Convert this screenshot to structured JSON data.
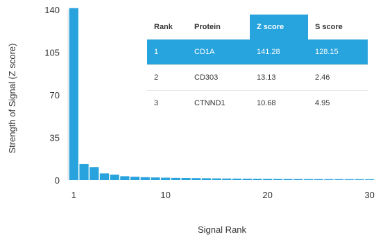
{
  "chart_data": {
    "type": "bar",
    "title": "",
    "xlabel": "Signal Rank",
    "ylabel": "Strength of Signal (Z score)",
    "ylim": [
      0,
      140
    ],
    "yticks": [
      "0",
      "35",
      "70",
      "105",
      "140"
    ],
    "xticks": [
      "1",
      "10",
      "20",
      "30"
    ],
    "xlim": [
      1,
      30
    ],
    "grid": false,
    "bar_color": "#29a3dd",
    "x": [
      1,
      2,
      3,
      4,
      5,
      6,
      7,
      8,
      9,
      10,
      11,
      12,
      13,
      14,
      15,
      16,
      17,
      18,
      19,
      20,
      21,
      22,
      23,
      24,
      25,
      26,
      27,
      28,
      29,
      30
    ],
    "values": [
      141.28,
      13.13,
      10.68,
      5.5,
      4.5,
      3.2,
      2.8,
      2.4,
      2.2,
      2.0,
      1.8,
      1.7,
      1.6,
      1.5,
      1.4,
      1.3,
      1.25,
      1.2,
      1.15,
      1.1,
      1.05,
      1.0,
      0.95,
      0.9,
      0.9,
      0.85,
      0.85,
      0.8,
      0.8,
      0.75
    ]
  },
  "table": {
    "headers": [
      "Rank",
      "Protein",
      "Z score",
      "S score"
    ],
    "highlight_color": "#27a3dd",
    "rows": [
      [
        "1",
        "CD1A",
        "141.28",
        "128.15"
      ],
      [
        "2",
        "CD303",
        "13.13",
        "2.46"
      ],
      [
        "3",
        "CTNND1",
        "10.68",
        "4.95"
      ]
    ]
  }
}
